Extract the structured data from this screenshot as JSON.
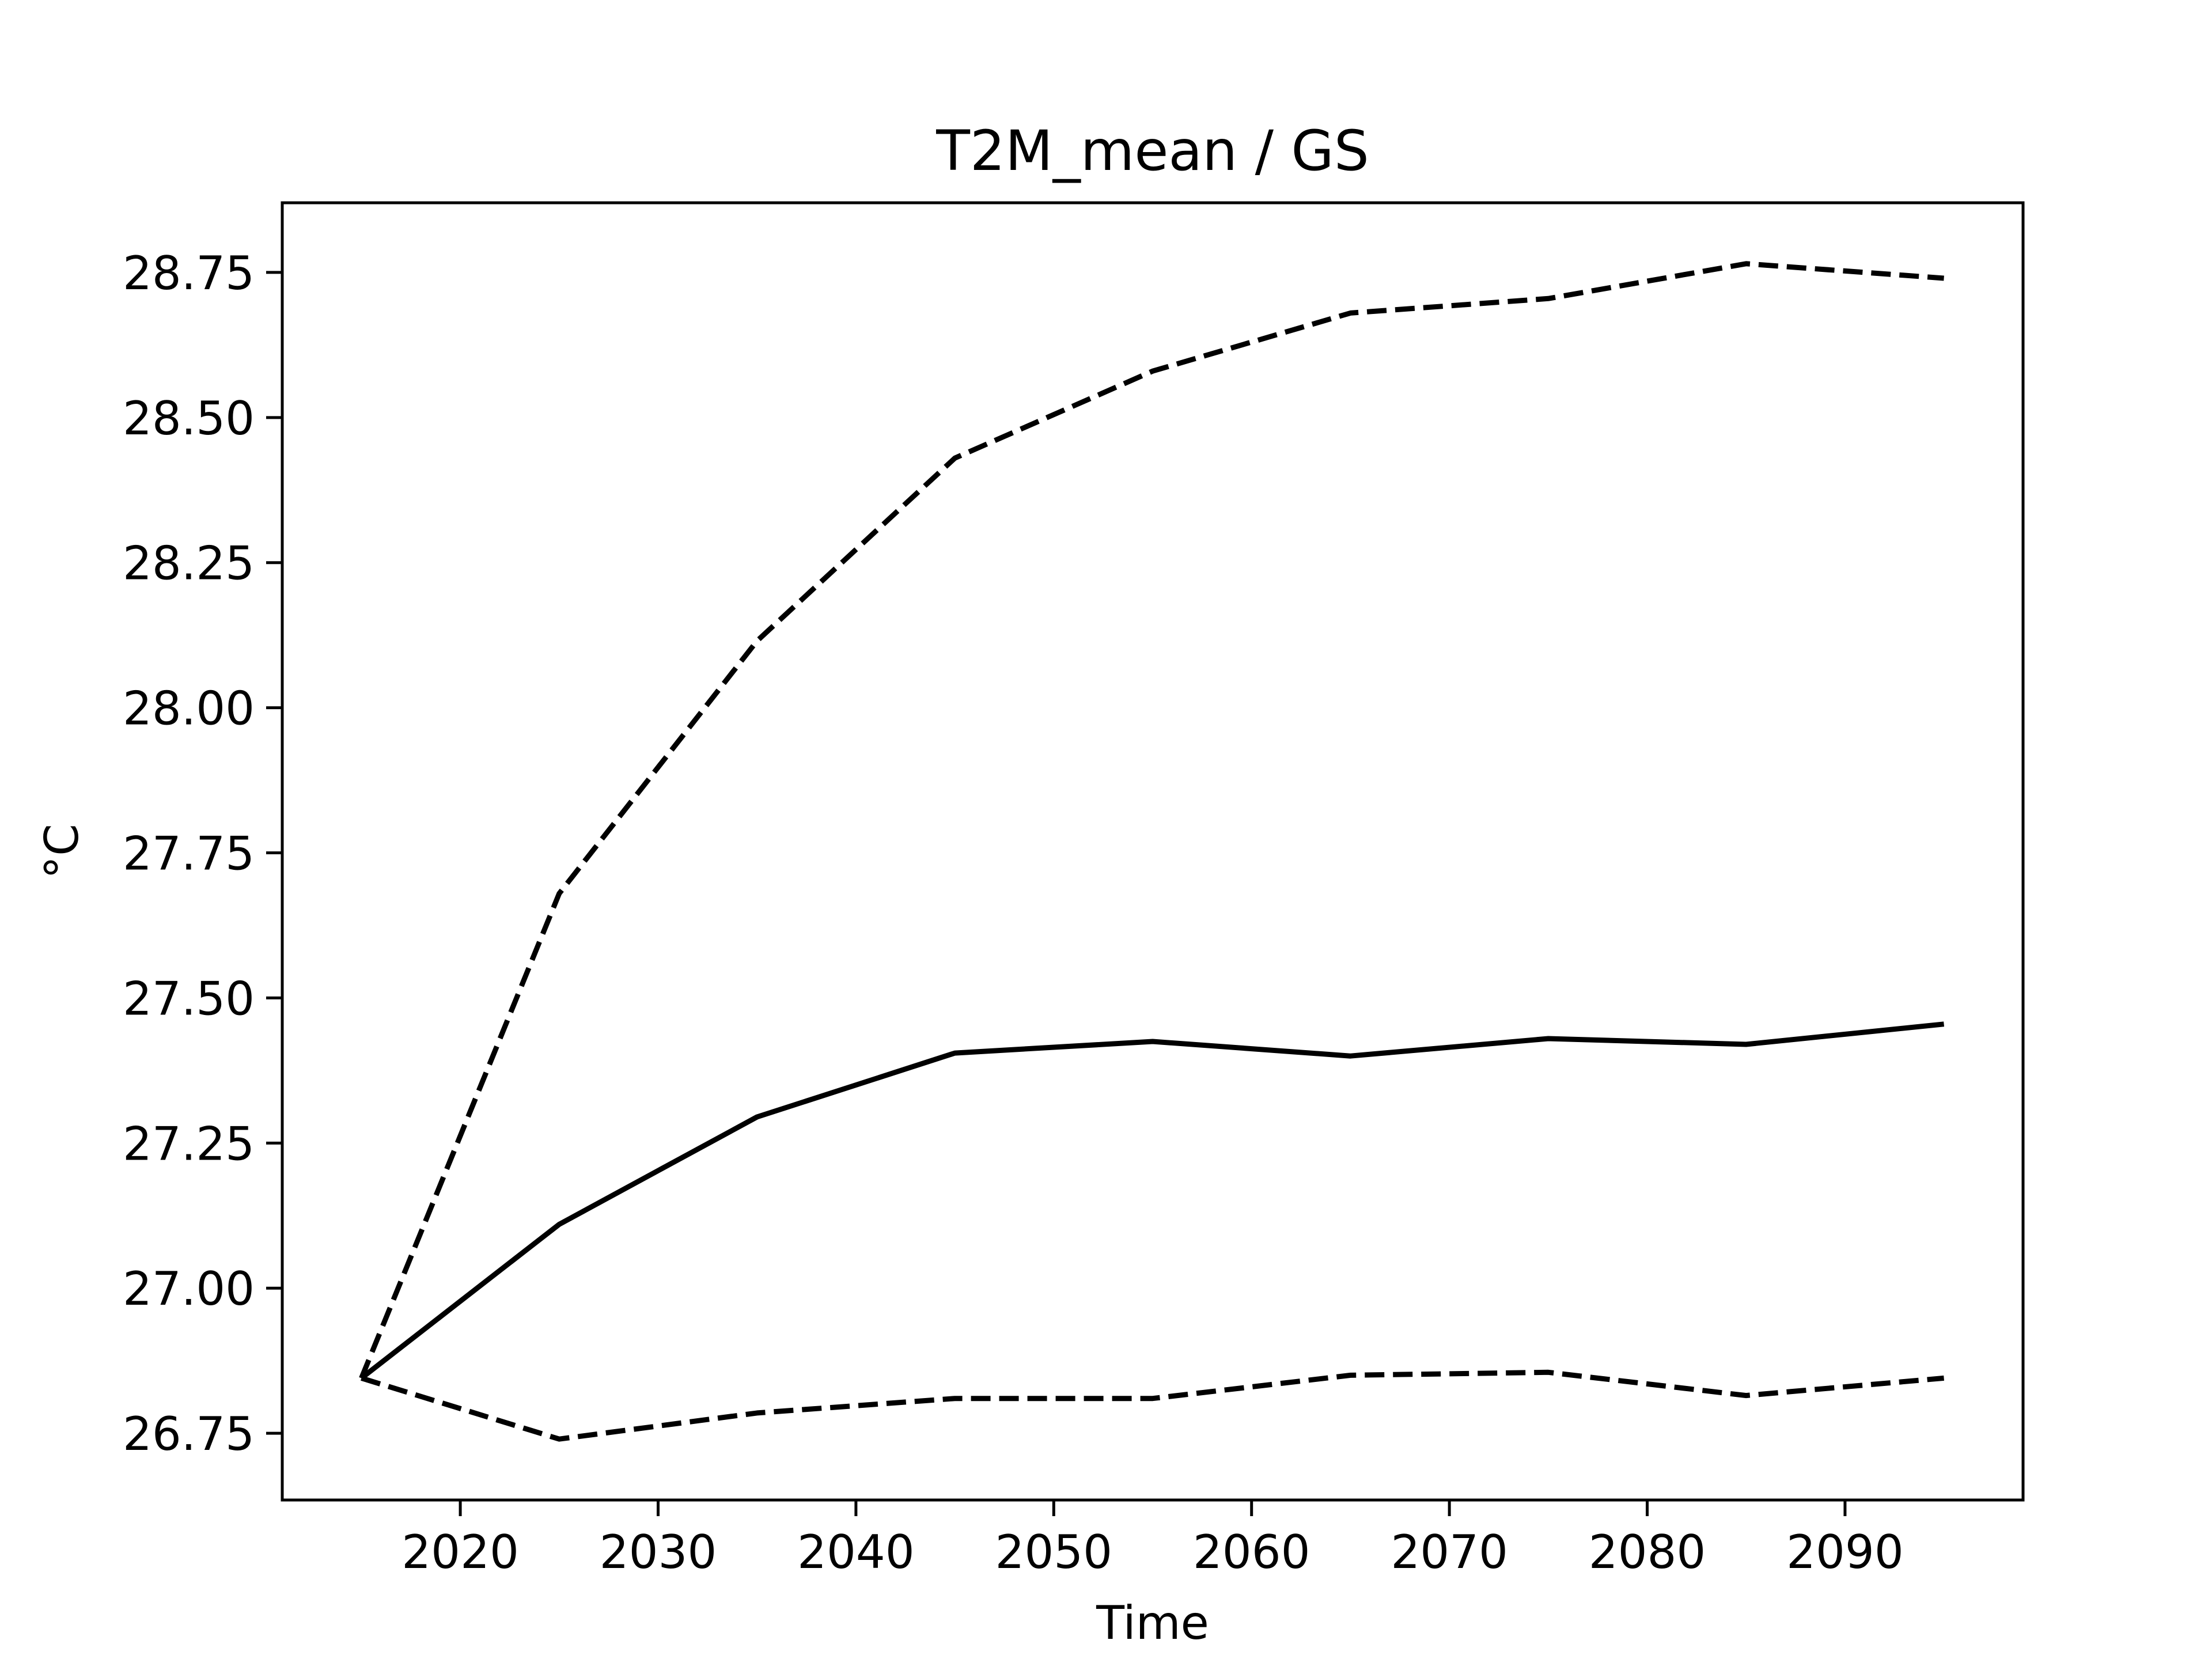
{
  "chart_data": {
    "type": "line",
    "title": "T2M_mean / GS",
    "xlabel": "Time",
    "ylabel": "°C",
    "xlim": [
      2011,
      2099
    ],
    "ylim": [
      26.635,
      28.87
    ],
    "xticks": [
      2020,
      2030,
      2040,
      2050,
      2060,
      2070,
      2080,
      2090
    ],
    "yticks": [
      26.75,
      27.0,
      27.25,
      27.5,
      27.75,
      28.0,
      28.25,
      28.5,
      28.75
    ],
    "ytick_labels": [
      "26.75",
      "27.00",
      "27.25",
      "27.50",
      "27.75",
      "28.00",
      "28.25",
      "28.50",
      "28.75"
    ],
    "xtick_labels": [
      "2020",
      "2030",
      "2040",
      "2050",
      "2060",
      "2070",
      "2080",
      "2090"
    ],
    "grid": false,
    "x": [
      2015,
      2025,
      2035,
      2045,
      2055,
      2065,
      2075,
      2085,
      2095
    ],
    "series": [
      {
        "style": "dashed",
        "color": "#000000",
        "values": [
          26.845,
          27.68,
          28.115,
          28.43,
          28.58,
          28.68,
          28.705,
          28.765,
          28.74
        ]
      },
      {
        "style": "solid",
        "color": "#000000",
        "values": [
          26.845,
          27.11,
          27.295,
          27.405,
          27.425,
          27.4,
          27.43,
          27.42,
          27.455
        ]
      },
      {
        "style": "dashed",
        "color": "#000000",
        "values": [
          26.845,
          26.74,
          26.785,
          26.81,
          26.81,
          26.85,
          26.855,
          26.815,
          26.845
        ]
      }
    ]
  }
}
